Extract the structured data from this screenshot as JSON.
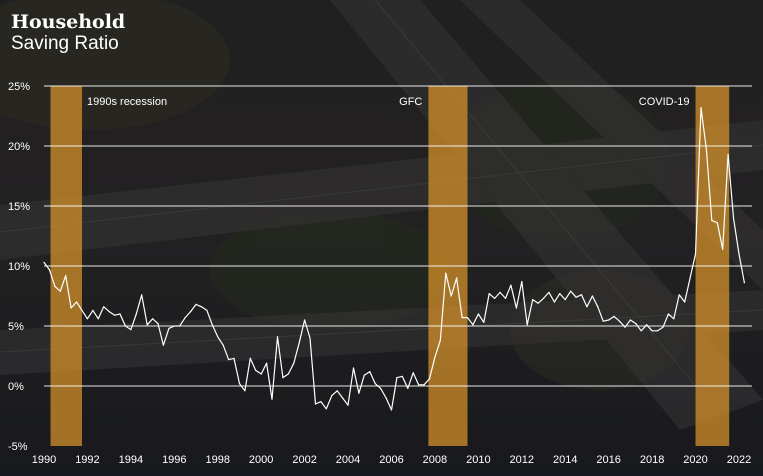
{
  "header": {
    "title_line1": "Household",
    "title_line2": "Saving Ratio"
  },
  "colors": {
    "band": "#d9942a",
    "line": "#ffffff",
    "grid": "#ffffff",
    "text": "#ffffff"
  },
  "chart_data": {
    "type": "line",
    "title": "Household Saving Ratio",
    "xlabel": "",
    "ylabel": "",
    "xlim": [
      1990,
      2022.6
    ],
    "ylim": [
      -5,
      25
    ],
    "yticks": [
      -5,
      0,
      5,
      10,
      15,
      20,
      25
    ],
    "ytick_labels": [
      "-5%",
      "0%",
      "5%",
      "10%",
      "15%",
      "20%",
      "25%"
    ],
    "xticks": [
      1990,
      1992,
      1994,
      1996,
      1998,
      2000,
      2002,
      2004,
      2006,
      2008,
      2010,
      2012,
      2014,
      2016,
      2018,
      2020,
      2022
    ],
    "xtick_labels": [
      "1990",
      "1992",
      "1994",
      "1996",
      "1998",
      "2000",
      "2002",
      "2004",
      "2006",
      "2008",
      "2010",
      "2012",
      "2014",
      "2016",
      "2018",
      "2020",
      "2022"
    ],
    "grid": "horizontal",
    "shaded_periods": [
      {
        "label": "1990s recession",
        "start": 1990.3,
        "end": 1991.75
      },
      {
        "label": "GFC",
        "start": 2007.7,
        "end": 2009.5
      },
      {
        "label": "COVID-19",
        "start": 2020.0,
        "end": 2021.55
      }
    ],
    "series": [
      {
        "values": [
          [
            1990.0,
            10.3
          ],
          [
            1990.25,
            9.7
          ],
          [
            1990.5,
            8.3
          ],
          [
            1990.75,
            7.9
          ],
          [
            1991.0,
            9.2
          ],
          [
            1991.25,
            6.5
          ],
          [
            1991.5,
            7.0
          ],
          [
            1991.75,
            6.3
          ],
          [
            1992.0,
            5.6
          ],
          [
            1992.25,
            6.3
          ],
          [
            1992.5,
            5.6
          ],
          [
            1992.75,
            6.6
          ],
          [
            1993.0,
            6.2
          ],
          [
            1993.25,
            5.9
          ],
          [
            1993.5,
            6.0
          ],
          [
            1993.75,
            5.0
          ],
          [
            1994.0,
            4.7
          ],
          [
            1994.25,
            6.0
          ],
          [
            1994.5,
            7.6
          ],
          [
            1994.75,
            5.1
          ],
          [
            1995.0,
            5.6
          ],
          [
            1995.25,
            5.2
          ],
          [
            1995.5,
            3.4
          ],
          [
            1995.75,
            4.8
          ],
          [
            1996.0,
            5.0
          ],
          [
            1996.25,
            5.0
          ],
          [
            1996.5,
            5.7
          ],
          [
            1996.75,
            6.2
          ],
          [
            1997.0,
            6.8
          ],
          [
            1997.25,
            6.6
          ],
          [
            1997.5,
            6.3
          ],
          [
            1997.75,
            5.1
          ],
          [
            1998.0,
            4.1
          ],
          [
            1998.25,
            3.4
          ],
          [
            1998.5,
            2.2
          ],
          [
            1998.75,
            2.3
          ],
          [
            1999.0,
            0.2
          ],
          [
            1999.25,
            -0.4
          ],
          [
            1999.5,
            2.3
          ],
          [
            1999.75,
            1.3
          ],
          [
            2000.0,
            1.0
          ],
          [
            2000.25,
            1.9
          ],
          [
            2000.5,
            -1.1
          ],
          [
            2000.75,
            4.1
          ],
          [
            2001.0,
            0.7
          ],
          [
            2001.25,
            1.0
          ],
          [
            2001.5,
            1.9
          ],
          [
            2001.75,
            3.6
          ],
          [
            2002.0,
            5.5
          ],
          [
            2002.25,
            4.0
          ],
          [
            2002.5,
            -1.5
          ],
          [
            2002.75,
            -1.3
          ],
          [
            2003.0,
            -1.9
          ],
          [
            2003.25,
            -0.8
          ],
          [
            2003.5,
            -0.4
          ],
          [
            2003.75,
            -1.0
          ],
          [
            2004.0,
            -1.6
          ],
          [
            2004.25,
            1.5
          ],
          [
            2004.5,
            -0.6
          ],
          [
            2004.75,
            0.9
          ],
          [
            2005.0,
            1.2
          ],
          [
            2005.25,
            0.2
          ],
          [
            2005.5,
            -0.2
          ],
          [
            2005.75,
            -1.0
          ],
          [
            2006.0,
            -2.0
          ],
          [
            2006.25,
            0.7
          ],
          [
            2006.5,
            0.8
          ],
          [
            2006.75,
            -0.2
          ],
          [
            2007.0,
            1.1
          ],
          [
            2007.25,
            0.1
          ],
          [
            2007.5,
            0.1
          ],
          [
            2007.75,
            0.6
          ],
          [
            2008.0,
            2.4
          ],
          [
            2008.25,
            3.8
          ],
          [
            2008.5,
            9.4
          ],
          [
            2008.75,
            7.5
          ],
          [
            2009.0,
            9.0
          ],
          [
            2009.25,
            5.7
          ],
          [
            2009.5,
            5.7
          ],
          [
            2009.75,
            5.1
          ],
          [
            2010.0,
            6.0
          ],
          [
            2010.25,
            5.3
          ],
          [
            2010.5,
            7.7
          ],
          [
            2010.75,
            7.3
          ],
          [
            2011.0,
            7.8
          ],
          [
            2011.25,
            7.3
          ],
          [
            2011.5,
            8.4
          ],
          [
            2011.75,
            6.5
          ],
          [
            2012.0,
            8.7
          ],
          [
            2012.25,
            5.1
          ],
          [
            2012.5,
            7.2
          ],
          [
            2012.75,
            6.9
          ],
          [
            2013.0,
            7.3
          ],
          [
            2013.25,
            7.8
          ],
          [
            2013.5,
            7.0
          ],
          [
            2013.75,
            7.7
          ],
          [
            2014.0,
            7.2
          ],
          [
            2014.25,
            7.9
          ],
          [
            2014.5,
            7.4
          ],
          [
            2014.75,
            7.6
          ],
          [
            2015.0,
            6.6
          ],
          [
            2015.25,
            7.5
          ],
          [
            2015.5,
            6.6
          ],
          [
            2015.75,
            5.4
          ],
          [
            2016.0,
            5.5
          ],
          [
            2016.25,
            5.8
          ],
          [
            2016.5,
            5.4
          ],
          [
            2016.75,
            4.9
          ],
          [
            2017.0,
            5.5
          ],
          [
            2017.25,
            5.2
          ],
          [
            2017.5,
            4.6
          ],
          [
            2017.75,
            5.1
          ],
          [
            2018.0,
            4.6
          ],
          [
            2018.25,
            4.6
          ],
          [
            2018.5,
            4.9
          ],
          [
            2018.75,
            6.0
          ],
          [
            2019.0,
            5.6
          ],
          [
            2019.25,
            7.6
          ],
          [
            2019.5,
            7.0
          ],
          [
            2019.75,
            9.0
          ],
          [
            2020.0,
            11.0
          ],
          [
            2020.25,
            23.2
          ],
          [
            2020.5,
            19.7
          ],
          [
            2020.75,
            13.8
          ],
          [
            2021.0,
            13.6
          ],
          [
            2021.25,
            11.4
          ],
          [
            2021.5,
            19.3
          ],
          [
            2021.75,
            14.0
          ],
          [
            2022.0,
            11.0
          ],
          [
            2022.25,
            8.6
          ]
        ]
      }
    ]
  }
}
